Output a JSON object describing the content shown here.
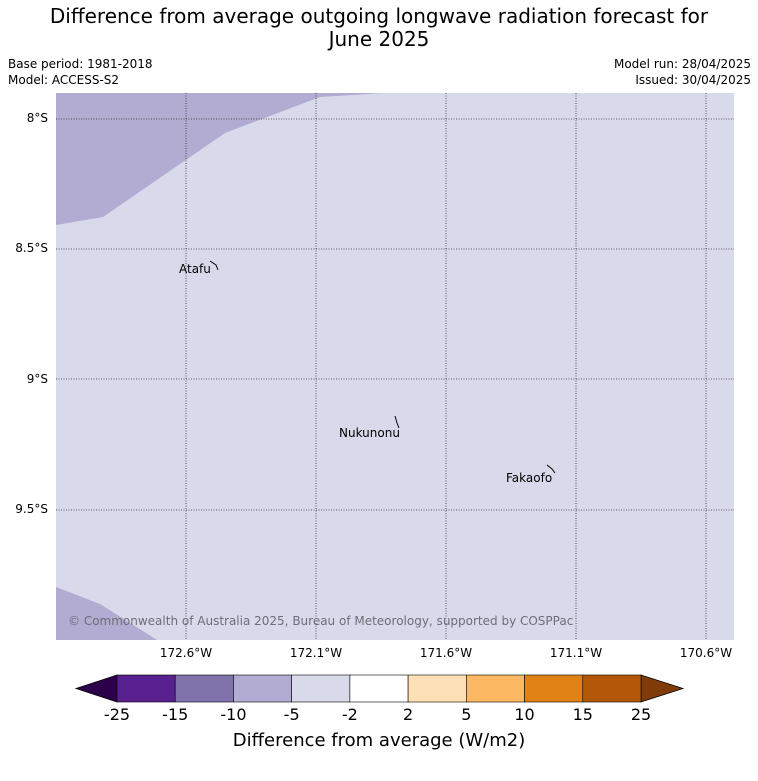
{
  "title_line1": "Difference from average outgoing longwave radiation forecast for",
  "title_line2": "June 2025",
  "meta": {
    "base_period": "Base period: 1981-2018",
    "model": "Model: ACCESS-S2",
    "model_run": "Model run: 28/04/2025",
    "issued": "Issued: 30/04/2025"
  },
  "lon_labels": [
    "172.6°W",
    "172.1°W",
    "171.6°W",
    "171.1°W",
    "170.6°W"
  ],
  "lat_labels": [
    "8°S",
    "8.5°S",
    "9°S",
    "9.5°S"
  ],
  "places": [
    "Atafu",
    "Nukunonu",
    "Fakaofo"
  ],
  "copyright": "© Commonwealth of Australia 2025, Bureau of Meteorology, supported by COSPPac",
  "colorbar": {
    "label": "Difference from average (W/m2)",
    "ticks": [
      "-25",
      "-15",
      "-10",
      "-5",
      "-2",
      "2",
      "5",
      "10",
      "15",
      "25"
    ],
    "colors": [
      "#59208f",
      "#8073ac",
      "#b2abd2",
      "#d8daeb",
      "#ffffff",
      "#fee0b6",
      "#fdb863",
      "#e08214",
      "#b35806"
    ],
    "under_color": "#2d004b",
    "over_color": "#7f3b08"
  },
  "map_colors": {
    "background": "#d8daeb",
    "anomaly": "#b2abd2"
  }
}
